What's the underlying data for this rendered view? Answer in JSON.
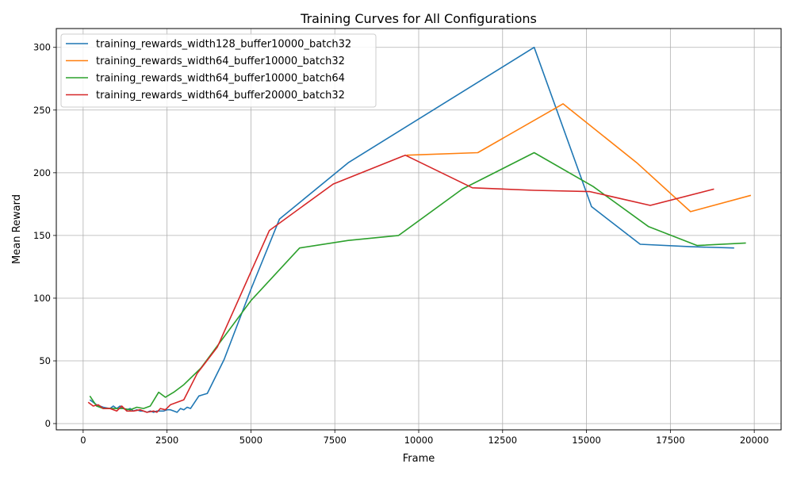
{
  "chart_data": {
    "type": "line",
    "title": "Training Curves for All Configurations",
    "xlabel": "Frame",
    "ylabel": "Mean Reward",
    "xlim": [
      -800,
      20800
    ],
    "ylim": [
      -5,
      315
    ],
    "xticks": [
      0,
      2500,
      5000,
      7500,
      10000,
      12500,
      15000,
      17500,
      20000
    ],
    "yticks": [
      0,
      50,
      100,
      150,
      200,
      250,
      300
    ],
    "grid": true,
    "legend_position": "top-left",
    "series": [
      {
        "name": "training_rewards_width128_buffer10000_batch32",
        "color": "#1f77b4",
        "points": [
          [
            200,
            19
          ],
          [
            400,
            15
          ],
          [
            600,
            13
          ],
          [
            800,
            12
          ],
          [
            900,
            14
          ],
          [
            1000,
            12
          ],
          [
            1100,
            14
          ],
          [
            1200,
            12
          ],
          [
            1300,
            11
          ],
          [
            1400,
            12
          ],
          [
            1500,
            10
          ],
          [
            1600,
            11
          ],
          [
            1700,
            10
          ],
          [
            1800,
            10
          ],
          [
            1900,
            9
          ],
          [
            2000,
            10
          ],
          [
            2100,
            9
          ],
          [
            2200,
            10
          ],
          [
            2300,
            10
          ],
          [
            2400,
            10
          ],
          [
            2500,
            11
          ],
          [
            2600,
            11
          ],
          [
            2700,
            10
          ],
          [
            2800,
            9
          ],
          [
            2900,
            12
          ],
          [
            3000,
            11
          ],
          [
            3100,
            13
          ],
          [
            3200,
            12
          ],
          [
            3450,
            22
          ],
          [
            3700,
            24
          ],
          [
            4200,
            51
          ],
          [
            5000,
            107
          ],
          [
            5850,
            163
          ],
          [
            7900,
            208
          ],
          [
            13440,
            300
          ],
          [
            15150,
            173
          ],
          [
            16600,
            143
          ],
          [
            18100,
            141
          ],
          [
            19400,
            140
          ]
        ]
      },
      {
        "name": "training_rewards_width64_buffer10000_batch32",
        "color": "#ff7f0e",
        "points": [
          [
            9640,
            214
          ],
          [
            11760,
            216
          ],
          [
            14300,
            255
          ],
          [
            16500,
            208
          ],
          [
            18100,
            169
          ],
          [
            19900,
            182
          ]
        ]
      },
      {
        "name": "training_rewards_width64_buffer10000_batch64",
        "color": "#2ca02c",
        "points": [
          [
            200,
            22
          ],
          [
            400,
            14
          ],
          [
            600,
            12
          ],
          [
            800,
            12
          ],
          [
            1000,
            12
          ],
          [
            1200,
            12
          ],
          [
            1400,
            11
          ],
          [
            1600,
            13
          ],
          [
            1800,
            12
          ],
          [
            2000,
            14
          ],
          [
            2250,
            25
          ],
          [
            2450,
            21
          ],
          [
            2700,
            25
          ],
          [
            3000,
            31
          ],
          [
            3500,
            44
          ],
          [
            4000,
            62
          ],
          [
            5000,
            98
          ],
          [
            6450,
            140
          ],
          [
            7900,
            146
          ],
          [
            9400,
            150
          ],
          [
            11300,
            187
          ],
          [
            13440,
            216
          ],
          [
            15200,
            189
          ],
          [
            16850,
            157
          ],
          [
            18300,
            142
          ],
          [
            19750,
            144
          ]
        ]
      },
      {
        "name": "training_rewards_width64_buffer20000_batch32",
        "color": "#d62728",
        "points": [
          [
            150,
            17
          ],
          [
            300,
            14
          ],
          [
            450,
            15
          ],
          [
            600,
            12
          ],
          [
            800,
            12
          ],
          [
            1000,
            10
          ],
          [
            1150,
            14
          ],
          [
            1300,
            10
          ],
          [
            1500,
            10
          ],
          [
            1700,
            11
          ],
          [
            1900,
            9
          ],
          [
            2100,
            10
          ],
          [
            2200,
            9
          ],
          [
            2300,
            12
          ],
          [
            2450,
            11
          ],
          [
            2600,
            15
          ],
          [
            3000,
            19
          ],
          [
            3400,
            40
          ],
          [
            4000,
            61
          ],
          [
            5550,
            154
          ],
          [
            7450,
            191
          ],
          [
            9600,
            214
          ],
          [
            11600,
            188
          ],
          [
            13450,
            186
          ],
          [
            15100,
            185
          ],
          [
            16900,
            174
          ],
          [
            18800,
            187
          ]
        ]
      }
    ]
  }
}
